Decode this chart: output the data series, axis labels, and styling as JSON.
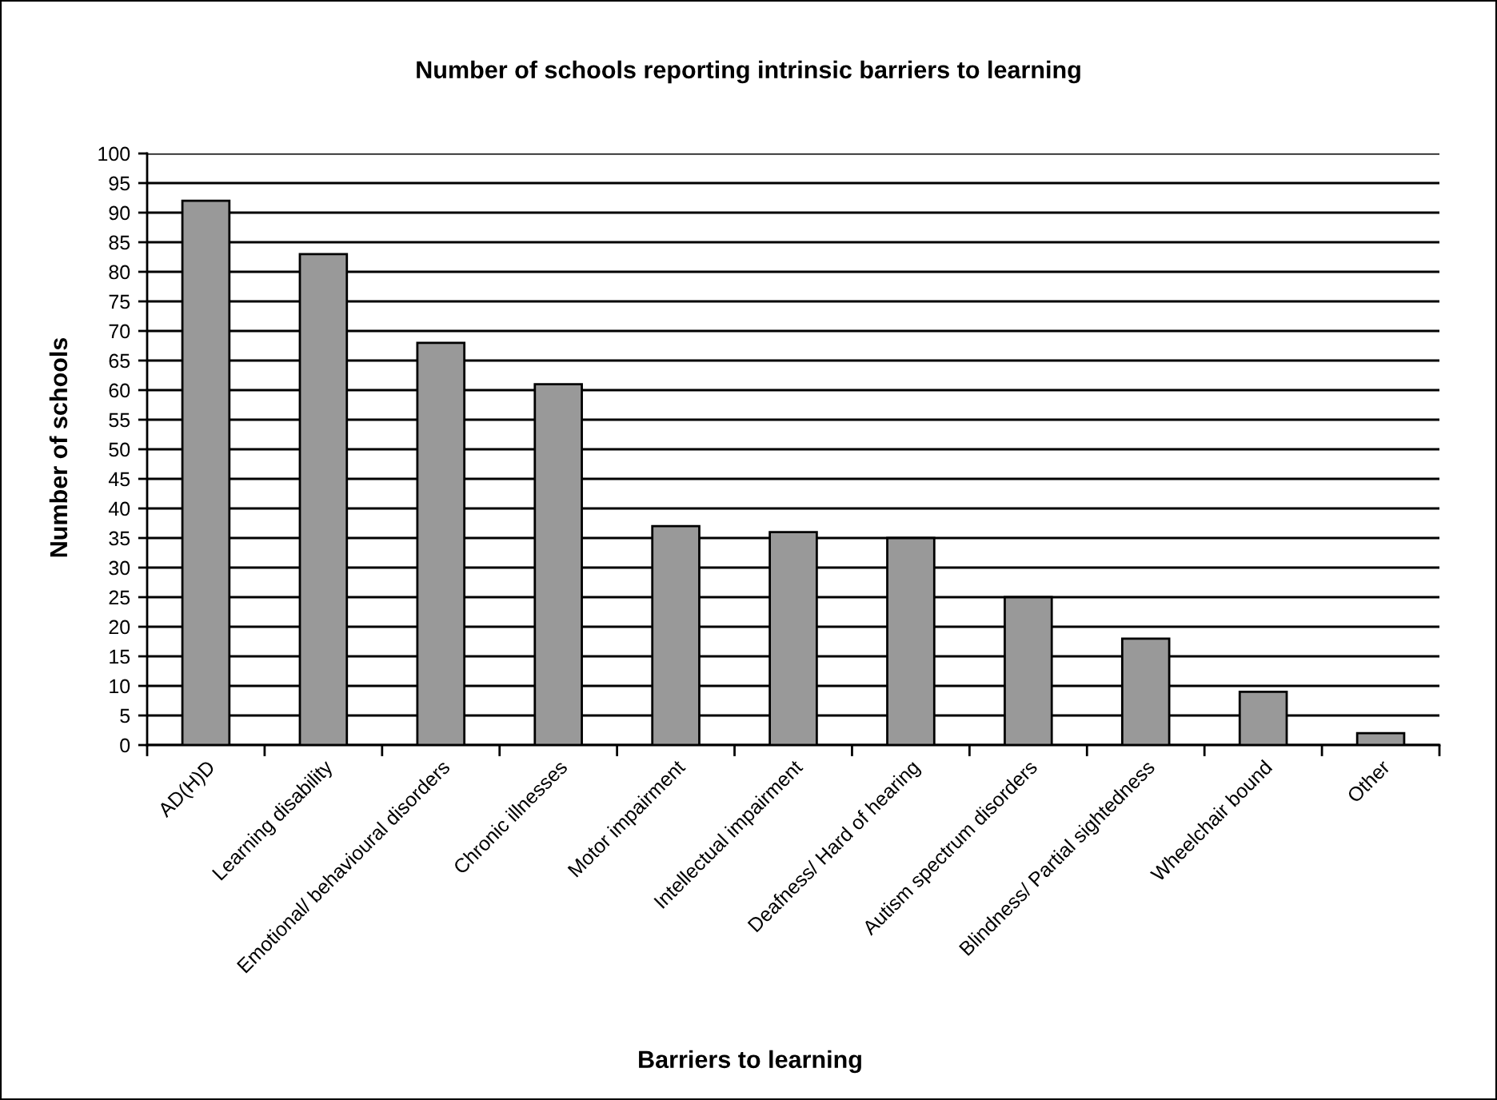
{
  "chart_data": {
    "type": "bar",
    "title": "Number of schools reporting intrinsic barriers to learning",
    "xlabel": "Barriers to learning",
    "ylabel": "Number of schools",
    "categories": [
      "AD(H)D",
      "Learning disability",
      "Emotional/ behavioural disorders",
      "Chronic illnesses",
      "Motor impairment",
      "Intellectual impairment",
      "Deafness/ Hard of hearing",
      "Autism spectrum disorders",
      "Blindness/ Partial sightedness",
      "Wheelchair bound",
      "Other"
    ],
    "values": [
      92,
      83,
      68,
      61,
      37,
      36,
      35,
      25,
      18,
      9,
      2
    ],
    "color": "#999999",
    "ylim": [
      0,
      100
    ],
    "yticks": [
      0,
      5,
      10,
      15,
      20,
      25,
      30,
      35,
      40,
      45,
      50,
      55,
      60,
      65,
      70,
      75,
      80,
      85,
      90,
      95,
      100
    ],
    "grid": "y",
    "legend": false
  }
}
